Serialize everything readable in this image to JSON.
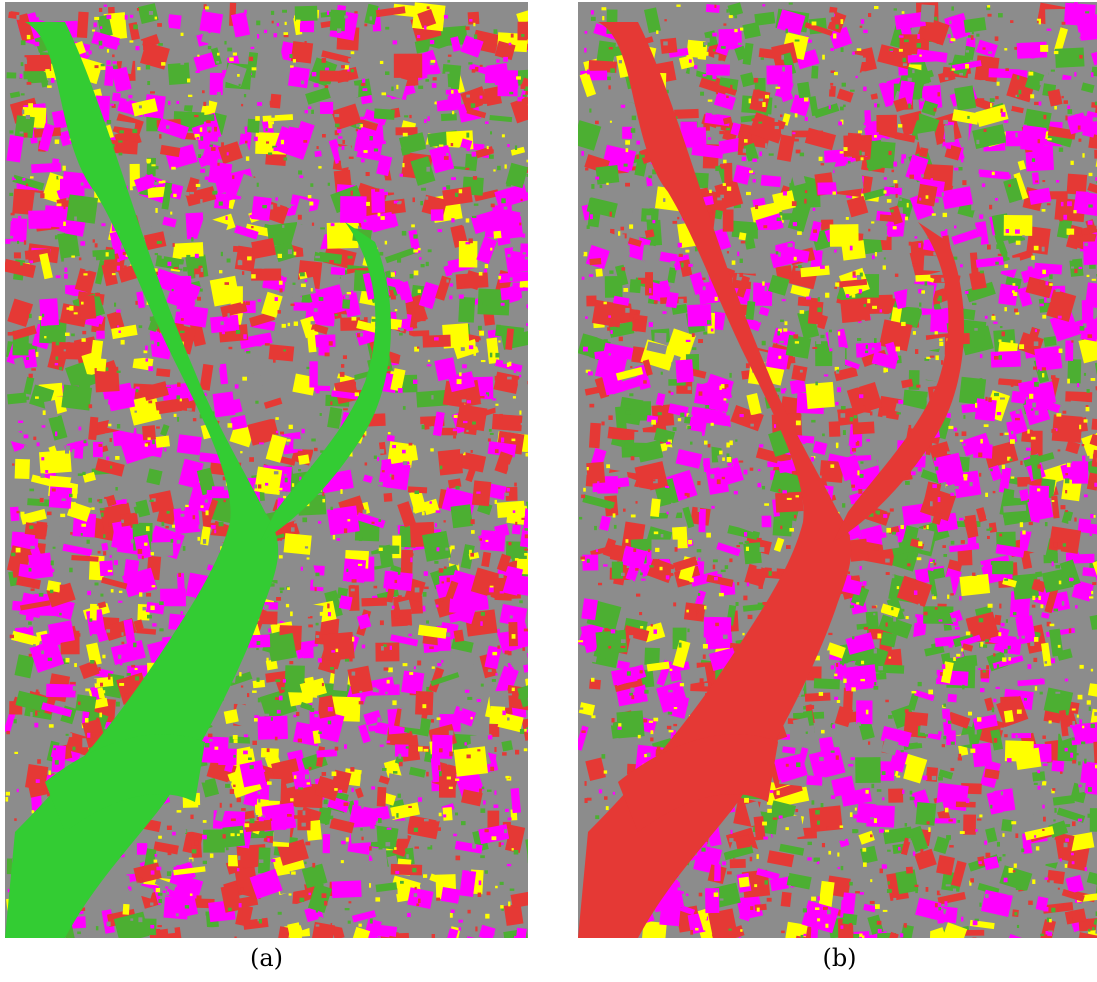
{
  "colors": {
    "green": "#33cc33",
    "red": "#e53935",
    "magenta": "#ff00ff",
    "yellow": "#ffff00",
    "gray": "#8c8c8c",
    "darkgreen": "#4caf32"
  },
  "panels": [
    {
      "id": "a",
      "caption": "(a)",
      "river_color": "green"
    },
    {
      "id": "b",
      "caption": "(b)",
      "river_color": "red"
    }
  ]
}
